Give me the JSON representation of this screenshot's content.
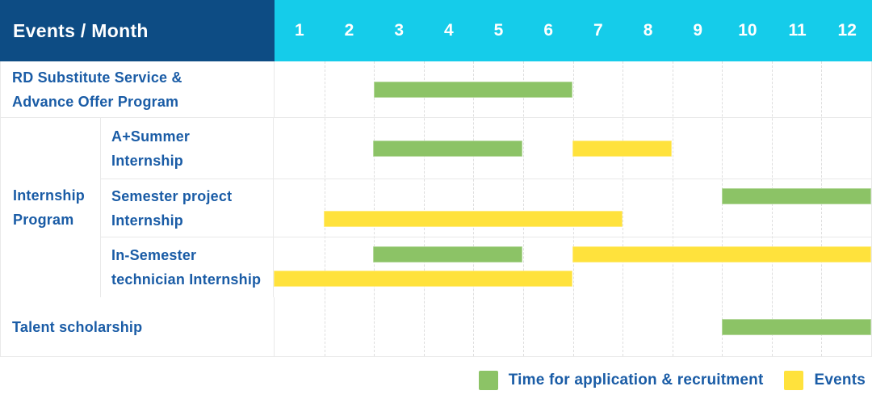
{
  "colors": {
    "navy": "#0D4C84",
    "cyan": "#15CCEA",
    "green": "#8CC366",
    "yellow": "#FFE23C",
    "text_blue": "#1A5CA6"
  },
  "chart_data": {
    "type": "bar",
    "subtype": "gantt-schedule",
    "title": "Events / Month",
    "x": [
      "1",
      "2",
      "3",
      "4",
      "5",
      "6",
      "7",
      "8",
      "9",
      "10",
      "11",
      "12"
    ],
    "x_range": [
      1,
      12
    ],
    "xlabel": "Month",
    "grid": true,
    "legend_position": "bottom-right",
    "bar_types": {
      "application": {
        "label": "Time for application & recruitment",
        "color": "#8CC366"
      },
      "events": {
        "label": "Events",
        "color": "#FFE23C"
      }
    },
    "sections": [
      {
        "kind": "row",
        "row": {
          "name": "rd-substitute-service",
          "label": "RD Substitute Service & Advance Offer Program",
          "label_lines": [
            "RD Substitute Service &",
            "Advance Offer Program"
          ],
          "bars": [
            {
              "type": "application",
              "start_month": 3,
              "end_month": 6,
              "lane": "single"
            }
          ]
        }
      },
      {
        "kind": "group",
        "name": "internship-program",
        "label": "Internship Program",
        "label_lines": [
          "Internship",
          "Program"
        ],
        "rows": [
          {
            "name": "a-plus-summer-internship",
            "label": "A+Summer Internship",
            "label_lines": [
              "A+Summer",
              "Internship"
            ],
            "bars": [
              {
                "type": "application",
                "start_month": 3,
                "end_month": 5,
                "lane": "single"
              },
              {
                "type": "events",
                "start_month": 7,
                "end_month": 8,
                "lane": "single"
              }
            ]
          },
          {
            "name": "semester-project-internship",
            "label": "Semester project Internship",
            "label_lines": [
              "Semester project",
              "Internship"
            ],
            "bars": [
              {
                "type": "application",
                "start_month": 10,
                "end_month": 12,
                "lane": "upper"
              },
              {
                "type": "events",
                "start_month": 2,
                "end_month": 7,
                "lane": "lower"
              }
            ]
          },
          {
            "name": "in-semester-technician-internship",
            "label": "In-Semester technician Internship",
            "label_lines": [
              "In-Semester",
              "technician Internship"
            ],
            "bars": [
              {
                "type": "application",
                "start_month": 3,
                "end_month": 5,
                "lane": "upper"
              },
              {
                "type": "events",
                "start_month": 7,
                "end_month": 12,
                "lane": "upper"
              },
              {
                "type": "events",
                "start_month": 1,
                "end_month": 6,
                "lane": "lower"
              }
            ]
          }
        ]
      },
      {
        "kind": "row",
        "row": {
          "name": "talent-scholarship",
          "label": "Talent scholarship",
          "label_lines": [
            "Talent scholarship"
          ],
          "bars": [
            {
              "type": "application",
              "start_month": 10,
              "end_month": 12,
              "lane": "single"
            }
          ]
        }
      }
    ],
    "legend": [
      {
        "type": "application",
        "label": "Time for application & recruitment"
      },
      {
        "type": "events",
        "label": "Events"
      }
    ]
  }
}
